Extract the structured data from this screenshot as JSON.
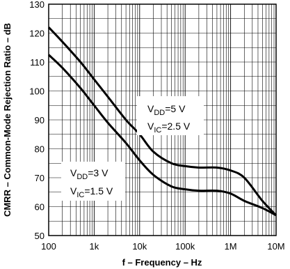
{
  "chart_data": {
    "type": "line",
    "xlabel": "f – Frequency – Hz",
    "ylabel": "CMRR – Common-Mode Rejection Ratio – dB",
    "xscale": "log",
    "xlim": [
      100,
      10000000
    ],
    "ylim": [
      50,
      130
    ],
    "grid": true,
    "x_ticks": [
      "100",
      "1k",
      "10k",
      "100k",
      "1M",
      "10M"
    ],
    "y_ticks": [
      "50",
      "60",
      "70",
      "80",
      "90",
      "100",
      "110",
      "120",
      "130"
    ],
    "series": [
      {
        "x": [
          100,
          200,
          500,
          1000,
          2000,
          5000,
          10000,
          20000,
          50000,
          100000,
          200000,
          500000,
          1000000,
          2000000,
          5000000,
          10000000
        ],
        "y": [
          122,
          117,
          110,
          104,
          98,
          90,
          85,
          79,
          75,
          74,
          73.5,
          73.5,
          72.5,
          70,
          62,
          57
        ]
      },
      {
        "x": [
          100,
          200,
          500,
          1000,
          2000,
          5000,
          10000,
          20000,
          50000,
          100000,
          200000,
          500000,
          1000000,
          2000000,
          5000000,
          10000000
        ],
        "y": [
          112.5,
          108,
          101,
          95,
          89,
          82,
          76,
          71,
          67,
          66,
          65.5,
          65.5,
          64.5,
          62,
          59.5,
          57
        ]
      }
    ],
    "annotations": [
      {
        "main": "V",
        "sub": "DD",
        "rest": "=5 V"
      },
      {
        "main": "V",
        "sub": "IC",
        "rest": "=2.5 V"
      },
      {
        "main": "V",
        "sub": "DD",
        "rest": "=3 V"
      },
      {
        "main": "V",
        "sub": "IC",
        "rest": "=1.5 V"
      }
    ]
  }
}
